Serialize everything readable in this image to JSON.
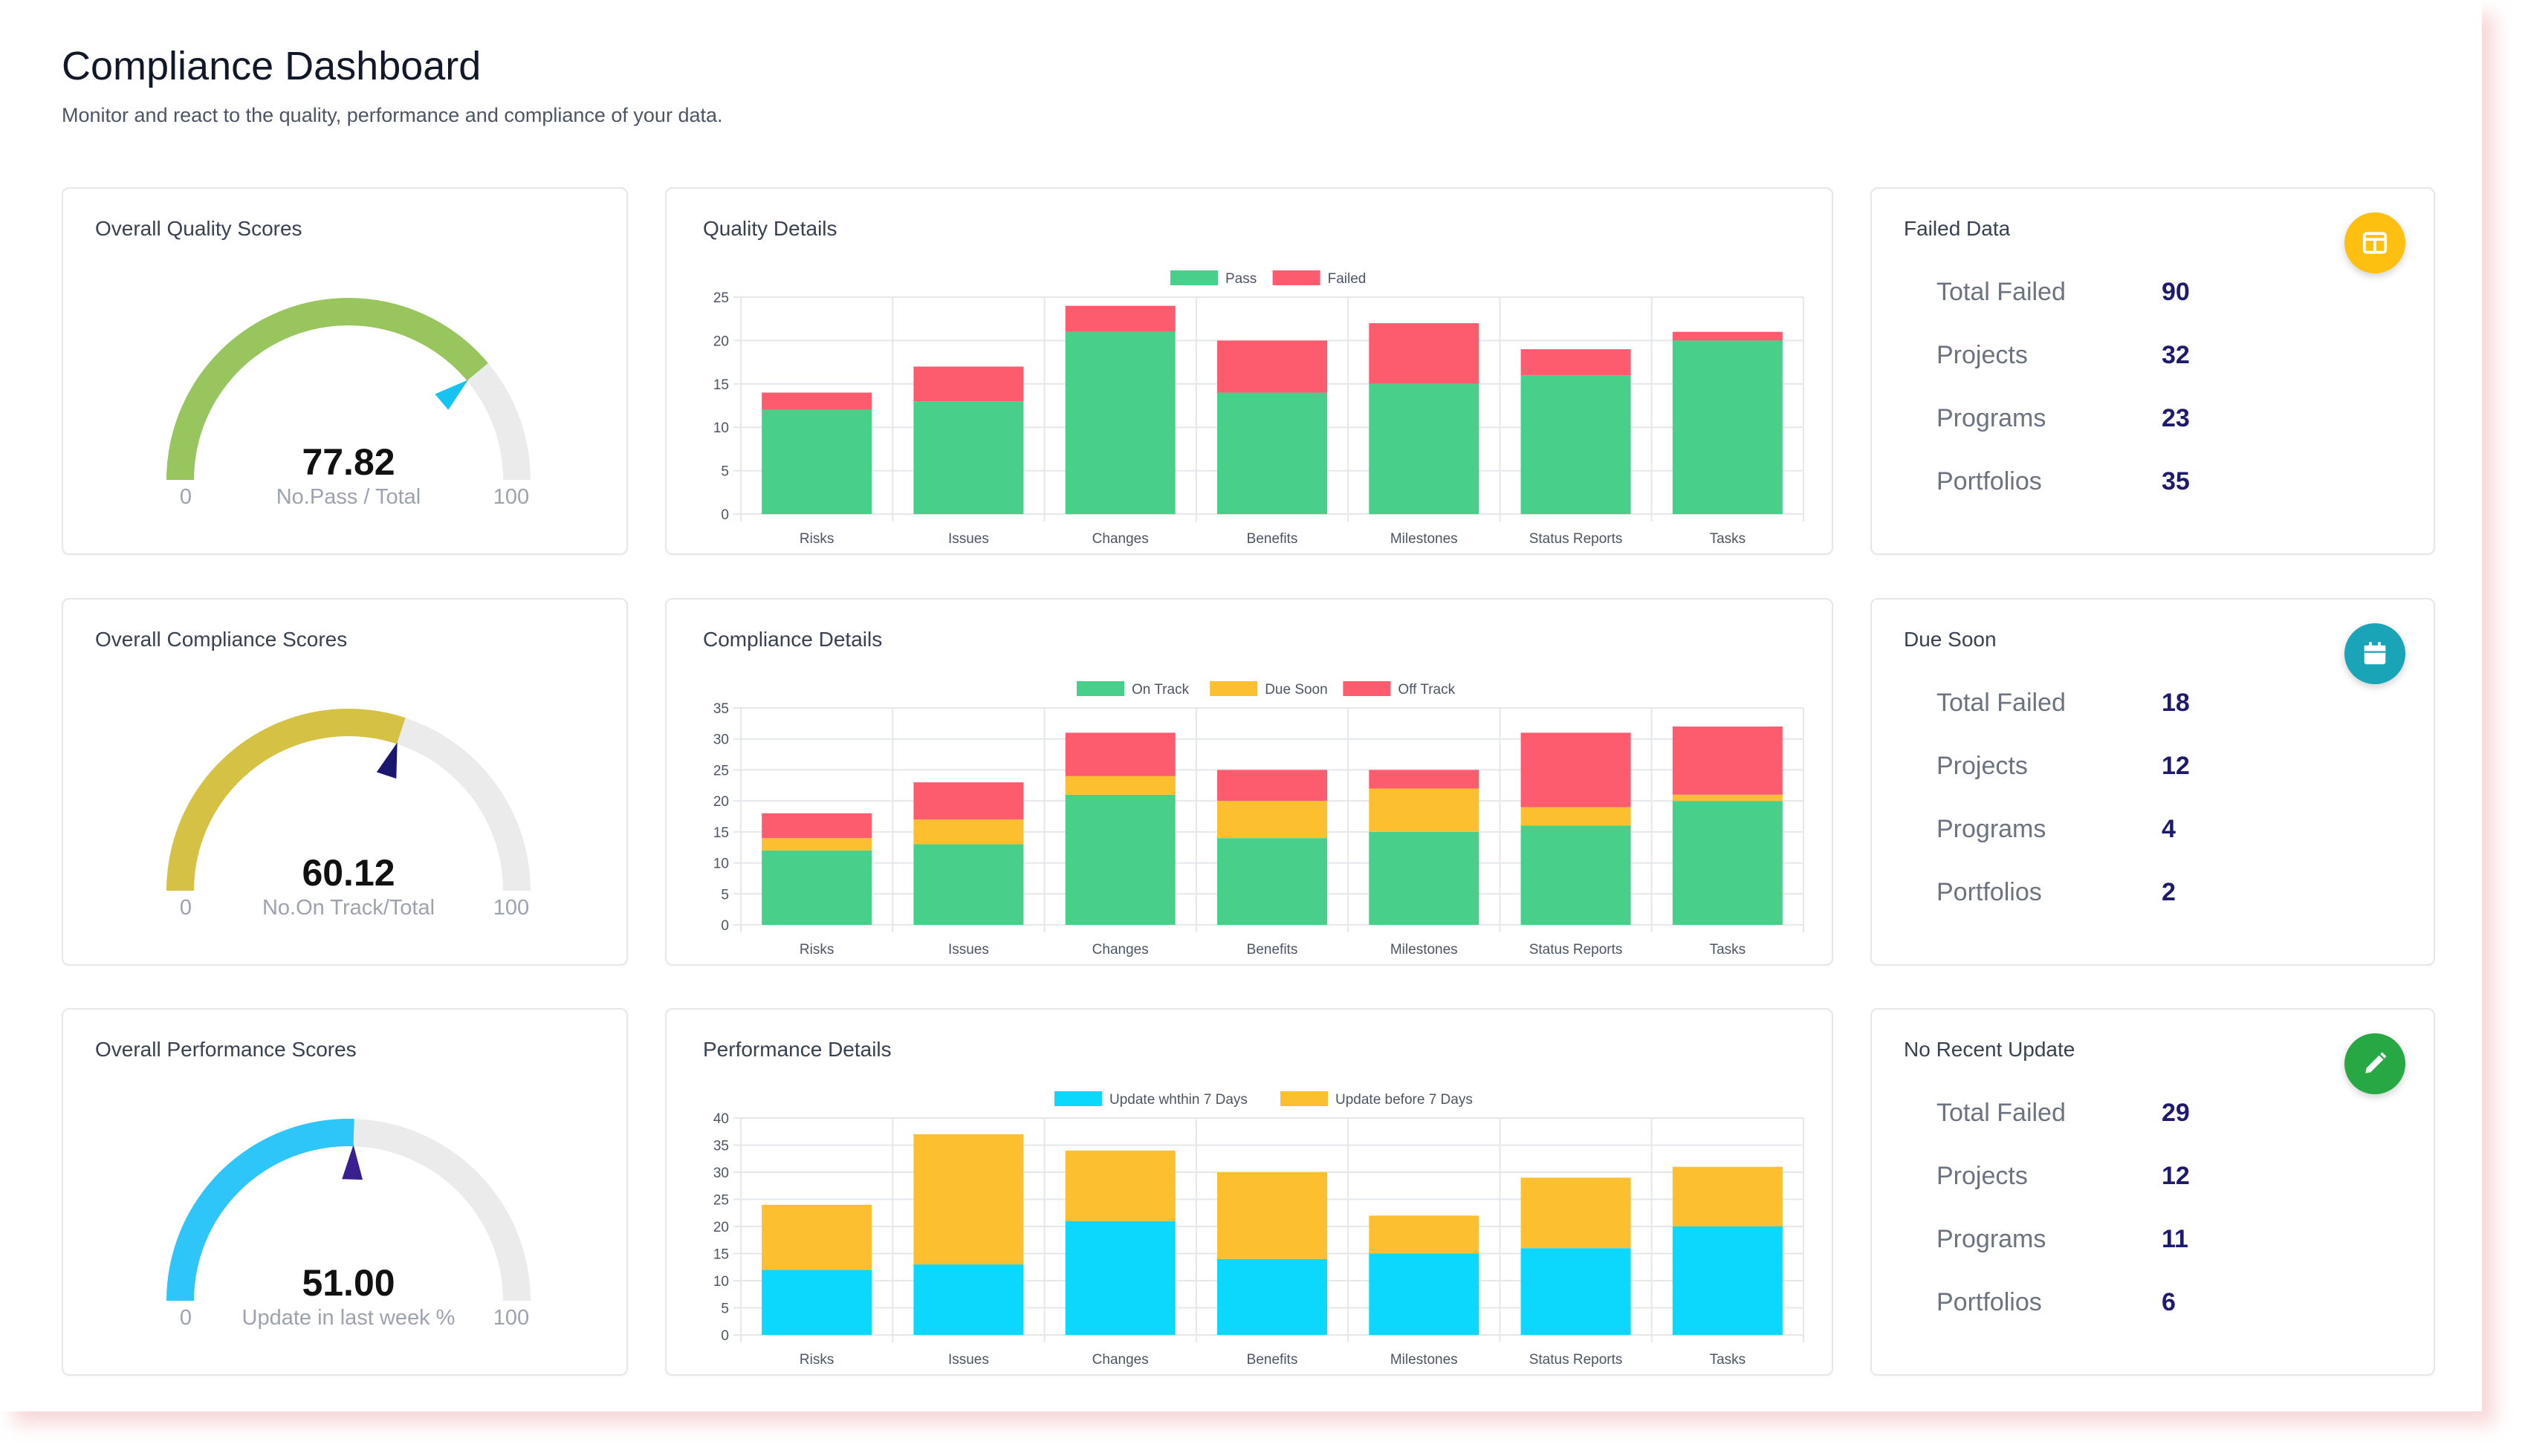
{
  "header": {
    "title": "Compliance Dashboard",
    "subtitle": "Monitor and react to the quality, performance and compliance of your data."
  },
  "gauges": [
    {
      "title": "Overall Quality Scores",
      "value": "77.82",
      "label": "No.Pass / Total",
      "min": "0",
      "max": "100",
      "fraction": 0.7782,
      "color": "#99c55f",
      "pointer": "#17c3f0"
    },
    {
      "title": "Overall Compliance Scores",
      "value": "60.12",
      "label": "No.On Track/Total",
      "min": "0",
      "max": "100",
      "fraction": 0.6012,
      "color": "#d5c244",
      "pointer": "#1b1670"
    },
    {
      "title": "Overall Performance Scores",
      "value": "51.00",
      "label": "Update in last week %",
      "min": "0",
      "max": "100",
      "fraction": 0.51,
      "color": "#2ec5f8",
      "pointer": "#3a1f8f"
    }
  ],
  "chart_data": [
    {
      "type": "bar",
      "stacked": true,
      "title": "Quality Details",
      "categories": [
        "Risks",
        "Issues",
        "Changes",
        "Benefits",
        "Milestones",
        "Status Reports",
        "Tasks"
      ],
      "series": [
        {
          "name": "Pass",
          "color": "#48cf8a",
          "values": [
            12,
            13,
            21,
            14,
            15,
            16,
            20
          ]
        },
        {
          "name": "Failed",
          "color": "#fd5c6f",
          "values": [
            2,
            4,
            3,
            6,
            7,
            3,
            1
          ]
        }
      ],
      "ylim": [
        0,
        25
      ],
      "yticks": [
        0,
        5,
        10,
        15,
        20,
        25
      ],
      "grid": true,
      "legend": "top-center"
    },
    {
      "type": "bar",
      "stacked": true,
      "title": "Compliance Details",
      "categories": [
        "Risks",
        "Issues",
        "Changes",
        "Benefits",
        "Milestones",
        "Status Reports",
        "Tasks"
      ],
      "series": [
        {
          "name": "On Track",
          "color": "#48cf8a",
          "values": [
            12,
            13,
            21,
            14,
            15,
            16,
            20
          ]
        },
        {
          "name": "Due Soon",
          "color": "#fcbf2f",
          "values": [
            2,
            4,
            3,
            6,
            7,
            3,
            1
          ]
        },
        {
          "name": "Off Track",
          "color": "#fd5c6f",
          "values": [
            4,
            6,
            7,
            5,
            3,
            12,
            11
          ]
        }
      ],
      "ylim": [
        0,
        35
      ],
      "yticks": [
        0,
        5,
        10,
        15,
        20,
        25,
        30,
        35
      ],
      "grid": true,
      "legend": "top-center"
    },
    {
      "type": "bar",
      "stacked": true,
      "title": "Performance Details",
      "categories": [
        "Risks",
        "Issues",
        "Changes",
        "Benefits",
        "Milestones",
        "Status Reports",
        "Tasks"
      ],
      "series": [
        {
          "name": "Update whthin 7 Days",
          "color": "#0bd8fc",
          "values": [
            12,
            13,
            21,
            14,
            15,
            16,
            20
          ]
        },
        {
          "name": "Update before 7 Days",
          "color": "#fcbf2f",
          "values": [
            12,
            24,
            13,
            16,
            7,
            13,
            11
          ]
        }
      ],
      "ylim": [
        0,
        40
      ],
      "yticks": [
        0,
        5,
        10,
        15,
        20,
        25,
        30,
        35,
        40
      ],
      "grid": true,
      "legend": "top-center"
    }
  ],
  "stats": [
    {
      "title": "Failed Data",
      "icon": "table-icon",
      "icon_color": "#fdc010",
      "rows": [
        {
          "label": "Total Failed",
          "value": "90"
        },
        {
          "label": "Projects",
          "value": "32"
        },
        {
          "label": "Programs",
          "value": "23"
        },
        {
          "label": "Portfolios",
          "value": "35"
        }
      ]
    },
    {
      "title": "Due Soon",
      "icon": "calendar-icon",
      "icon_color": "#1aa4b8",
      "rows": [
        {
          "label": "Total Failed",
          "value": "18"
        },
        {
          "label": "Projects",
          "value": "12"
        },
        {
          "label": "Programs",
          "value": "4"
        },
        {
          "label": "Portfolios",
          "value": "2"
        }
      ]
    },
    {
      "title": "No Recent Update",
      "icon": "pencil-icon",
      "icon_color": "#27a844",
      "rows": [
        {
          "label": "Total Failed",
          "value": "29"
        },
        {
          "label": "Projects",
          "value": "12"
        },
        {
          "label": "Programs",
          "value": "11"
        },
        {
          "label": "Portfolios",
          "value": "6"
        }
      ]
    }
  ]
}
